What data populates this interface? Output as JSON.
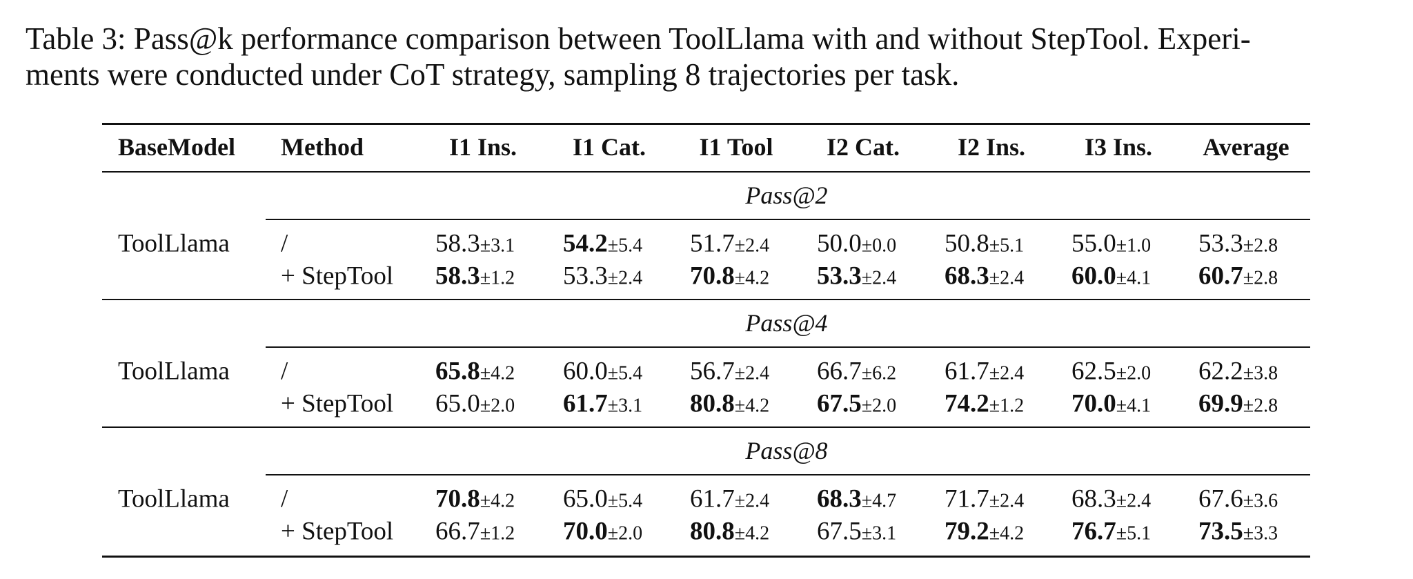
{
  "caption": {
    "lines": [
      "Table 3: Pass@k performance comparison between ToolLlama with and without StepTool. Experi-",
      "ments were conducted under CoT strategy, sampling 8 trajectories per task."
    ]
  },
  "table": {
    "headers": [
      "BaseModel",
      "Method",
      "I1 Ins.",
      "I1 Cat.",
      "I1 Tool",
      "I2 Cat.",
      "I2 Ins.",
      "I3 Ins.",
      "Average"
    ],
    "sections": [
      {
        "title": "Pass@2",
        "base_model": "ToolLlama",
        "rows": [
          {
            "method": "/",
            "cells": [
              {
                "value": "58.3",
                "std": "±3.1",
                "bold": false
              },
              {
                "value": "54.2",
                "std": "±5.4",
                "bold": true
              },
              {
                "value": "51.7",
                "std": "±2.4",
                "bold": false
              },
              {
                "value": "50.0",
                "std": "±0.0",
                "bold": false
              },
              {
                "value": "50.8",
                "std": "±5.1",
                "bold": false
              },
              {
                "value": "55.0",
                "std": "±1.0",
                "bold": false
              },
              {
                "value": "53.3",
                "std": "±2.8",
                "bold": false
              }
            ]
          },
          {
            "method": "+ StepTool",
            "cells": [
              {
                "value": "58.3",
                "std": "±1.2",
                "bold": true
              },
              {
                "value": "53.3",
                "std": "±2.4",
                "bold": false
              },
              {
                "value": "70.8",
                "std": "±4.2",
                "bold": true
              },
              {
                "value": "53.3",
                "std": "±2.4",
                "bold": true
              },
              {
                "value": "68.3",
                "std": "±2.4",
                "bold": true
              },
              {
                "value": "60.0",
                "std": "±4.1",
                "bold": true
              },
              {
                "value": "60.7",
                "std": "±2.8",
                "bold": true
              }
            ]
          }
        ]
      },
      {
        "title": "Pass@4",
        "base_model": "ToolLlama",
        "rows": [
          {
            "method": "/",
            "cells": [
              {
                "value": "65.8",
                "std": "±4.2",
                "bold": true
              },
              {
                "value": "60.0",
                "std": "±5.4",
                "bold": false
              },
              {
                "value": "56.7",
                "std": "±2.4",
                "bold": false
              },
              {
                "value": "66.7",
                "std": "±6.2",
                "bold": false
              },
              {
                "value": "61.7",
                "std": "±2.4",
                "bold": false
              },
              {
                "value": "62.5",
                "std": "±2.0",
                "bold": false
              },
              {
                "value": "62.2",
                "std": "±3.8",
                "bold": false
              }
            ]
          },
          {
            "method": "+ StepTool",
            "cells": [
              {
                "value": "65.0",
                "std": "±2.0",
                "bold": false
              },
              {
                "value": "61.7",
                "std": "±3.1",
                "bold": true
              },
              {
                "value": "80.8",
                "std": "±4.2",
                "bold": true
              },
              {
                "value": "67.5",
                "std": "±2.0",
                "bold": true
              },
              {
                "value": "74.2",
                "std": "±1.2",
                "bold": true
              },
              {
                "value": "70.0",
                "std": "±4.1",
                "bold": true
              },
              {
                "value": "69.9",
                "std": "±2.8",
                "bold": true
              }
            ]
          }
        ]
      },
      {
        "title": "Pass@8",
        "base_model": "ToolLlama",
        "rows": [
          {
            "method": "/",
            "cells": [
              {
                "value": "70.8",
                "std": "±4.2",
                "bold": true
              },
              {
                "value": "65.0",
                "std": "±5.4",
                "bold": false
              },
              {
                "value": "61.7",
                "std": "±2.4",
                "bold": false
              },
              {
                "value": "68.3",
                "std": "±4.7",
                "bold": true
              },
              {
                "value": "71.7",
                "std": "±2.4",
                "bold": false
              },
              {
                "value": "68.3",
                "std": "±2.4",
                "bold": false
              },
              {
                "value": "67.6",
                "std": "±3.6",
                "bold": false
              }
            ]
          },
          {
            "method": "+ StepTool",
            "cells": [
              {
                "value": "66.7",
                "std": "±1.2",
                "bold": false
              },
              {
                "value": "70.0",
                "std": "±2.0",
                "bold": true
              },
              {
                "value": "80.8",
                "std": "±4.2",
                "bold": true
              },
              {
                "value": "67.5",
                "std": "±3.1",
                "bold": false
              },
              {
                "value": "79.2",
                "std": "±4.2",
                "bold": true
              },
              {
                "value": "76.7",
                "std": "±5.1",
                "bold": true
              },
              {
                "value": "73.5",
                "std": "±3.3",
                "bold": true
              }
            ]
          }
        ]
      }
    ]
  }
}
